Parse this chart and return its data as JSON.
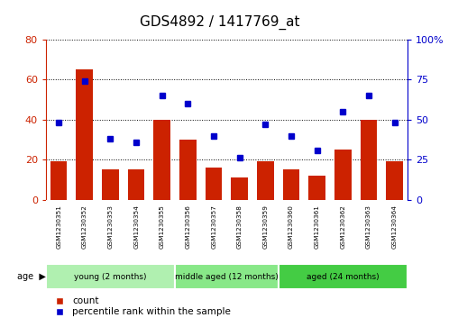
{
  "title": "GDS4892 / 1417769_at",
  "samples": [
    "GSM1230351",
    "GSM1230352",
    "GSM1230353",
    "GSM1230354",
    "GSM1230355",
    "GSM1230356",
    "GSM1230357",
    "GSM1230358",
    "GSM1230359",
    "GSM1230360",
    "GSM1230361",
    "GSM1230362",
    "GSM1230363",
    "GSM1230364"
  ],
  "counts": [
    19,
    65,
    15,
    15,
    40,
    30,
    16,
    11,
    19,
    15,
    12,
    25,
    40,
    19
  ],
  "percentiles": [
    48,
    74,
    38,
    36,
    65,
    60,
    40,
    26,
    47,
    40,
    31,
    55,
    65,
    48
  ],
  "group_defs": [
    {
      "label": "young (2 months)",
      "start": 0,
      "end": 4,
      "color": "#b0f0b0"
    },
    {
      "label": "middle aged (12 months)",
      "start": 5,
      "end": 8,
      "color": "#88e888"
    },
    {
      "label": "aged (24 months)",
      "start": 9,
      "end": 13,
      "color": "#44cc44"
    }
  ],
  "ylim_left": [
    0,
    80
  ],
  "ylim_right": [
    0,
    100
  ],
  "yticks_left": [
    0,
    20,
    40,
    60,
    80
  ],
  "yticks_right": [
    0,
    25,
    50,
    75,
    100
  ],
  "bar_color": "#CC2200",
  "marker_color": "#0000CC",
  "age_label": "age",
  "legend_count": "count",
  "legend_percentile": "percentile rank within the sample",
  "axis_label_color_left": "#CC2200",
  "axis_label_color_right": "#0000CC",
  "sample_label_bg": "#c8c8c8",
  "title_fontsize": 11
}
